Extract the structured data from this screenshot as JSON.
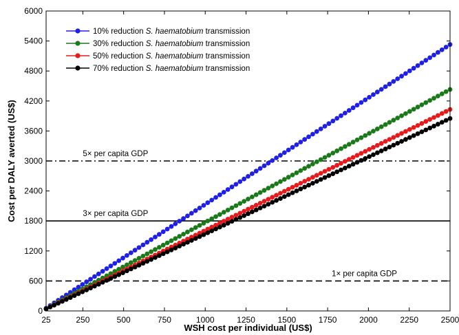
{
  "chart_data": {
    "type": "line",
    "xlabel": "WSH cost per individual (US$)",
    "ylabel": "Cost per DALY averted (US$)",
    "xlim": [
      25,
      2500
    ],
    "ylim": [
      0,
      6000
    ],
    "x_ticks": [
      25,
      250,
      500,
      750,
      1000,
      1250,
      1500,
      1750,
      2000,
      2250,
      2500
    ],
    "y_ticks": [
      0,
      600,
      1200,
      1800,
      2400,
      3000,
      3600,
      4200,
      4800,
      5400,
      6000
    ],
    "x_tick_labels": [
      "25",
      "250",
      "500",
      "750",
      "1000",
      "1250",
      "1500",
      "1750",
      "2000",
      "2250",
      "2500"
    ],
    "y_tick_labels": [
      "0",
      "600",
      "1200",
      "1800",
      "2400",
      "3000",
      "3600",
      "4200",
      "4800",
      "5400",
      "6000"
    ],
    "grid": false,
    "legend_position": "top-left",
    "x": [
      25,
      2500
    ],
    "series": [
      {
        "name_prefix": "10% reduction ",
        "name_species": "S. haematobium",
        "name_suffix": " transmission",
        "color": "#1f1fe6",
        "values": [
          55,
          5330
        ]
      },
      {
        "name_prefix": "30% reduction ",
        "name_species": "S. haematobium",
        "name_suffix": " transmission",
        "color": "#1a7a1a",
        "values": [
          45,
          4430
        ]
      },
      {
        "name_prefix": "50% reduction ",
        "name_species": "S. haematobium",
        "name_suffix": " transmission",
        "color": "#e61a1a",
        "values": [
          41,
          4030
        ]
      },
      {
        "name_prefix": "70% reduction ",
        "name_species": "S. haematobium",
        "name_suffix": " transmission",
        "color": "#000000",
        "values": [
          39,
          3850
        ]
      }
    ],
    "reference_lines": [
      {
        "label": "5× per capita GDP",
        "y": 3000,
        "style": "dashdot",
        "label_x": 250
      },
      {
        "label": "3× per capita GDP",
        "y": 1800,
        "style": "solid",
        "label_x": 250
      },
      {
        "label": "1× per capita GDP",
        "y": 600,
        "style": "dashed",
        "label_x": 1775
      }
    ]
  }
}
